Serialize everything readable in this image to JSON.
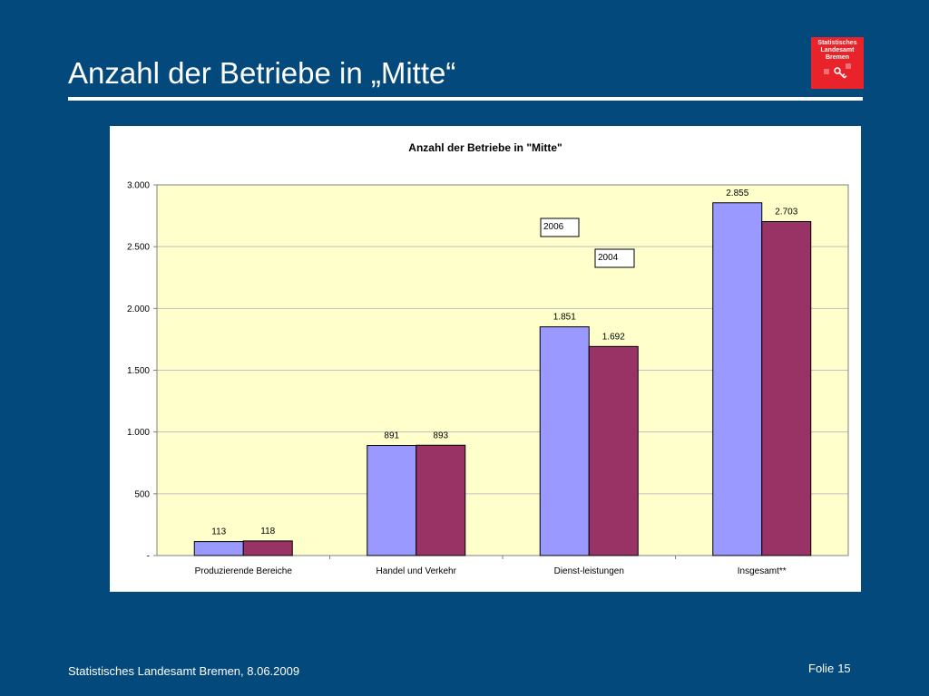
{
  "slide": {
    "title": "Anzahl der Betriebe in „Mitte“",
    "footer_source": "Statistisches Landesamt Bremen, 8.06.2009",
    "footer_page_label": "Folie",
    "footer_page_number": "15"
  },
  "logo": {
    "lines": [
      "Statistisches",
      "Landesamt",
      "Bremen"
    ],
    "color": "#e8232a"
  },
  "colors": {
    "background": "#04497c",
    "plot_area": "#ffffcc",
    "series_2006": "#9999ff",
    "series_2004": "#993366"
  },
  "chart_data": {
    "type": "bar",
    "title": "Anzahl der Betriebe in \"Mitte\"",
    "categories": [
      "Produzierende Bereiche",
      "Handel und Verkehr",
      "Dienst-leistungen",
      "Insgesamt**"
    ],
    "series": [
      {
        "name": "2006",
        "values": [
          113,
          891,
          1851,
          2855
        ],
        "labels": [
          "113",
          "891",
          "1.851",
          "2.855"
        ],
        "color": "#9999ff"
      },
      {
        "name": "2004",
        "values": [
          118,
          893,
          1692,
          2703
        ],
        "labels": [
          "118",
          "893",
          "1.692",
          "2.703"
        ],
        "color": "#993366"
      }
    ],
    "ylim": [
      0,
      3000
    ],
    "yticks": [
      0,
      500,
      1000,
      1500,
      2000,
      2500,
      3000
    ],
    "ytick_labels": [
      "-",
      "500",
      "1.000",
      "1.500",
      "2.000",
      "2.500",
      "3.000"
    ],
    "grid": true,
    "legend": "inside plot, upper middle"
  }
}
